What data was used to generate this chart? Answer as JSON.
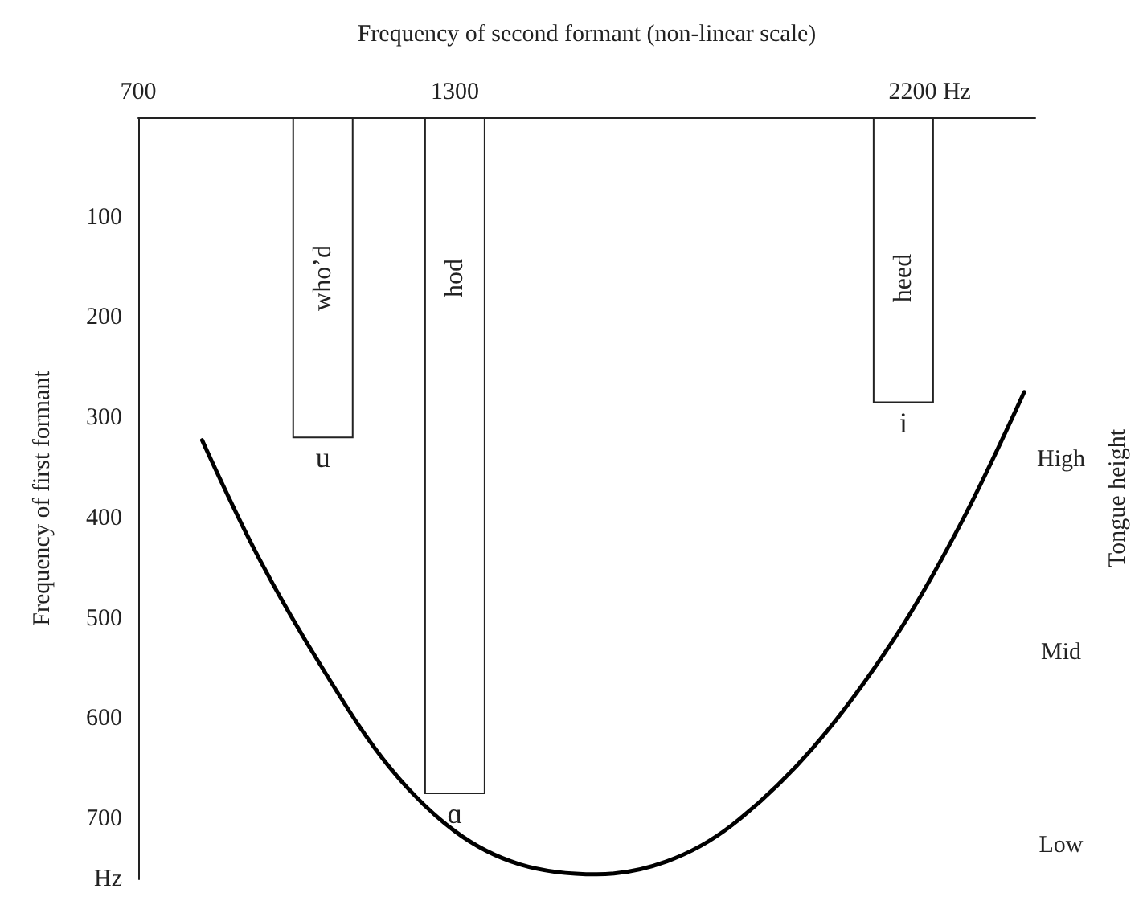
{
  "chart_data": {
    "type": "bar",
    "xlabel": "Frequency of second formant (non-linear scale)",
    "ylabel": "Frequency of first formant",
    "y2label": "Tongue height",
    "xlim": [
      700,
      2400
    ],
    "xticks": [
      700,
      1300,
      {
        "value": 2200,
        "label": "2200 Hz"
      }
    ],
    "ylim": [
      760,
      0
    ],
    "yticks": [
      100,
      200,
      300,
      400,
      500,
      600,
      700,
      {
        "value": 760,
        "label": "Hz"
      }
    ],
    "series": [
      {
        "color": "#ffffff",
        "x": [
          1050,
          1300,
          2150
        ],
        "values": [
          320,
          675,
          285
        ],
        "value_labels": [
          "who’d",
          "hod",
          "heed"
        ]
      },
      {
        "type": "line",
        "color": "#000000",
        "x": [
          821,
          929,
          1052,
          1176,
          1300,
          1423,
          1569,
          1702,
          1825,
          1980,
          2134,
          2258,
          2379
        ],
        "values": [
          322,
          440,
          552,
          648,
          712,
          745,
          755,
          742,
          706,
          628,
          519,
          406,
          274
        ]
      }
    ],
    "annotations": [
      {
        "text": "u",
        "x": 1050,
        "y": 320
      },
      {
        "text": "ɑ",
        "x": 1300,
        "y": 675
      },
      {
        "text": "i",
        "x": 2150,
        "y": 285
      },
      "High",
      "Mid",
      "Low"
    ],
    "grid": false,
    "marker": "none",
    "line_style": "solid"
  }
}
